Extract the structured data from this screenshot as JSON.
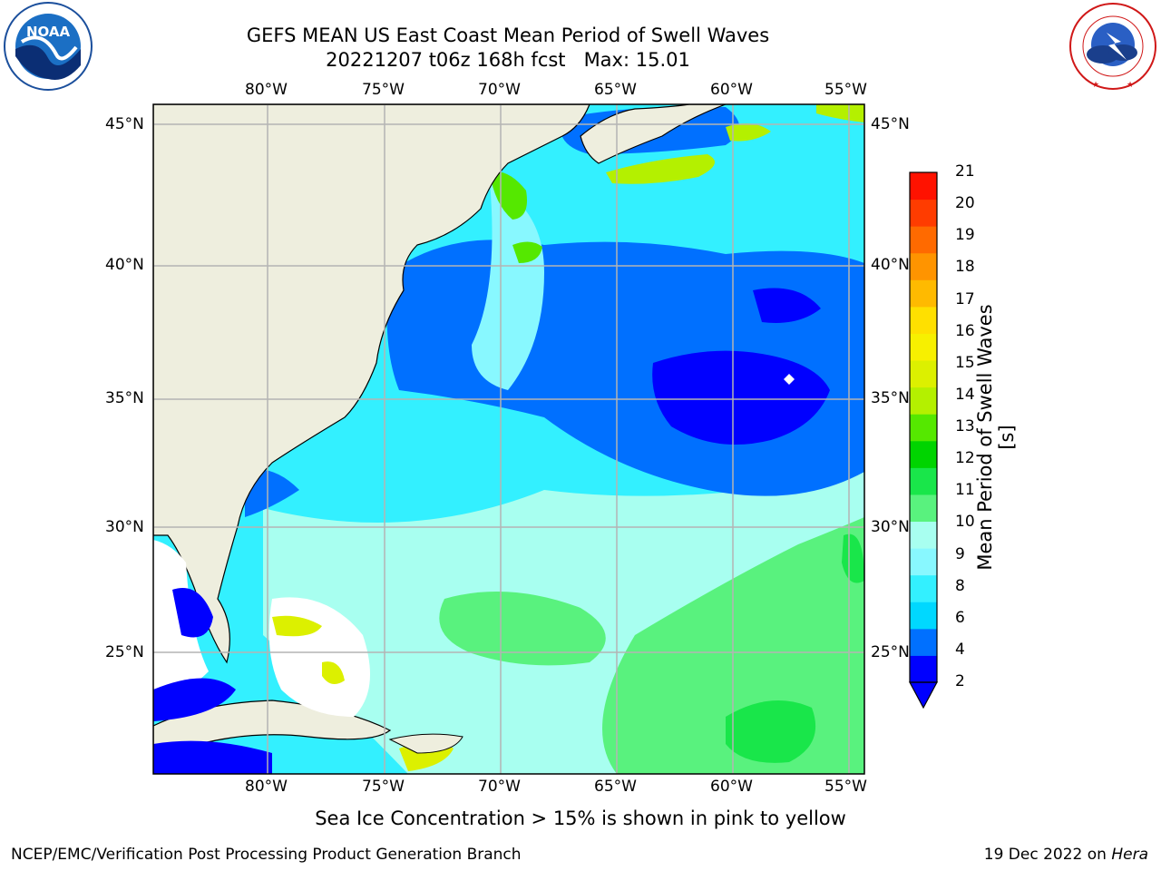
{
  "title": {
    "line1": "GEFS MEAN US East Coast Mean Period of Swell Waves",
    "line2": "20221207 t06z 168h fcst   Max: 15.01"
  },
  "map": {
    "lon_ticks": [
      "80°W",
      "75°W",
      "70°W",
      "65°W",
      "60°W",
      "55°W"
    ],
    "lat_ticks": [
      "45°N",
      "40°N",
      "35°N",
      "30°N",
      "25°N"
    ],
    "land_color": "#eeeede",
    "ice_color": "#ffffff"
  },
  "colorbar": {
    "label": "Mean Period of Swell Waves [s]",
    "ticks": [
      "21",
      "20",
      "19",
      "18",
      "17",
      "16",
      "15",
      "14",
      "13",
      "12",
      "11",
      "10",
      "9",
      "8",
      "6",
      "4",
      "2"
    ],
    "colors": [
      "#0000ff",
      "#0070ff",
      "#00d8ff",
      "#33f0ff",
      "#88f8ff",
      "#a8fff0",
      "#59f27e",
      "#19e64a",
      "#00d400",
      "#55e800",
      "#b4f000",
      "#dcf000",
      "#f7f000",
      "#ffe000",
      "#ffba00",
      "#ff9400",
      "#ff6a00",
      "#ff3c00",
      "#ff1200"
    ]
  },
  "footer": {
    "note": "Sea Ice Concentration > 15% is shown in pink to yellow",
    "left": "NCEP/EMC/Verification Post Processing Product Generation Branch",
    "right_date": "19 Dec 2022 on ",
    "right_machine": "Hera"
  },
  "logos": {
    "noaa_text": "NOAA",
    "nws_text": "NATIONAL WEATHER SERVICE"
  }
}
